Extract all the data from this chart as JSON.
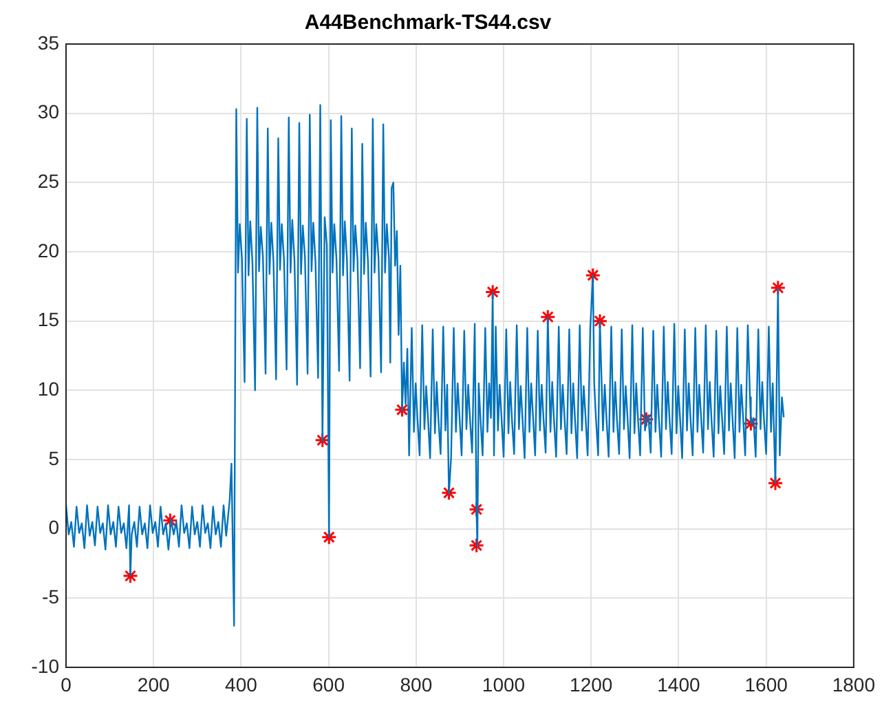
{
  "chart_data": {
    "type": "line",
    "title": "A44Benchmark-TS44.csv",
    "xlim": [
      0,
      1800
    ],
    "xticks": [
      0,
      200,
      400,
      600,
      800,
      1000,
      1200,
      1400,
      1600,
      1800
    ],
    "ylim": [
      -10,
      35
    ],
    "yticks": [
      -10,
      -5,
      0,
      5,
      10,
      15,
      20,
      25,
      30,
      35
    ],
    "grid": true,
    "legend": false,
    "series": [
      {
        "type": "line",
        "color": "#0072bd",
        "marker": "none",
        "line_style": "solid",
        "x": [
          0,
          6,
          12,
          18,
          24,
          30,
          36,
          42,
          48,
          54,
          60,
          66,
          72,
          78,
          84,
          90,
          96,
          102,
          108,
          114,
          120,
          126,
          132,
          138,
          144,
          147,
          150,
          156,
          162,
          168,
          174,
          180,
          186,
          192,
          198,
          204,
          210,
          216,
          222,
          228,
          234,
          240,
          246,
          252,
          258,
          264,
          270,
          276,
          282,
          288,
          294,
          300,
          306,
          312,
          318,
          324,
          330,
          336,
          342,
          348,
          354,
          360,
          366,
          370,
          374,
          378,
          384,
          389,
          393,
          397,
          402,
          408,
          413,
          417,
          421,
          426,
          432,
          437,
          441,
          445,
          450,
          456,
          461,
          465,
          469,
          474,
          480,
          485,
          489,
          493,
          498,
          504,
          509,
          513,
          517,
          522,
          528,
          533,
          537,
          541,
          546,
          552,
          557,
          561,
          565,
          570,
          576,
          581,
          586,
          591,
          596,
          601,
          605,
          609,
          613,
          618,
          624,
          629,
          633,
          637,
          642,
          648,
          653,
          657,
          661,
          666,
          672,
          677,
          681,
          685,
          690,
          696,
          701,
          705,
          709,
          714,
          720,
          725,
          729,
          733,
          738,
          741,
          744,
          748,
          752,
          756,
          760,
          764,
          768,
          772,
          776,
          780,
          784,
          790,
          795,
          799,
          803,
          808,
          814,
          819,
          823,
          827,
          832,
          838,
          843,
          847,
          851,
          856,
          862,
          867,
          871,
          875,
          880,
          886,
          891,
          895,
          899,
          904,
          910,
          915,
          919,
          923,
          928,
          934,
          938,
          940,
          943,
          947,
          952,
          958,
          963,
          967,
          971,
          975,
          978,
          982,
          987,
          991,
          995,
          1000,
          1006,
          1011,
          1015,
          1019,
          1024,
          1030,
          1035,
          1039,
          1043,
          1048,
          1054,
          1059,
          1063,
          1067,
          1072,
          1078,
          1083,
          1087,
          1091,
          1096,
          1101,
          1107,
          1111,
          1115,
          1120,
          1126,
          1131,
          1135,
          1139,
          1144,
          1150,
          1155,
          1159,
          1163,
          1168,
          1174,
          1179,
          1183,
          1187,
          1192,
          1198,
          1204,
          1207,
          1211,
          1216,
          1220,
          1227,
          1231,
          1235,
          1240,
          1246,
          1251,
          1255,
          1259,
          1264,
          1270,
          1275,
          1279,
          1283,
          1288,
          1294,
          1299,
          1303,
          1307,
          1312,
          1318,
          1323,
          1327,
          1331,
          1336,
          1342,
          1347,
          1351,
          1355,
          1360,
          1366,
          1371,
          1375,
          1379,
          1384,
          1390,
          1395,
          1399,
          1403,
          1408,
          1414,
          1419,
          1423,
          1427,
          1432,
          1438,
          1443,
          1447,
          1451,
          1456,
          1462,
          1467,
          1471,
          1475,
          1480,
          1486,
          1491,
          1495,
          1499,
          1504,
          1510,
          1515,
          1519,
          1523,
          1528,
          1534,
          1539,
          1543,
          1547,
          1552,
          1558,
          1563,
          1565,
          1571,
          1576,
          1582,
          1587,
          1591,
          1595,
          1600,
          1606,
          1611,
          1615,
          1621,
          1627,
          1631,
          1636,
          1640
        ],
        "values": [
          1.7,
          -0.4,
          0.5,
          -1.3,
          1.6,
          -0.3,
          0.4,
          -1.4,
          1.7,
          -0.5,
          0.5,
          -1.2,
          1.6,
          -0.3,
          0.4,
          -1.5,
          1.7,
          -0.4,
          0.5,
          -1.3,
          1.6,
          -0.3,
          0.4,
          -1.4,
          1.7,
          -3.4,
          -0.4,
          0.5,
          -1.3,
          1.6,
          -0.4,
          0.4,
          -1.4,
          1.7,
          -0.3,
          0.5,
          -1.3,
          1.6,
          -0.4,
          0.4,
          -1.5,
          0.7,
          -0.4,
          0.5,
          -1.3,
          1.7,
          -0.3,
          0.4,
          -1.4,
          1.6,
          -0.4,
          0.5,
          -1.3,
          1.7,
          -0.3,
          0.4,
          -1.4,
          1.6,
          -0.4,
          0.5,
          -1.3,
          1.7,
          -0.5,
          0.8,
          2.1,
          4.7,
          -7.0,
          30.3,
          18.5,
          22,
          19.5,
          10.6,
          29.6,
          18.3,
          22.2,
          19.2,
          10,
          30.4,
          18.6,
          21.8,
          19.6,
          11.2,
          28.9,
          18.4,
          22.1,
          19.3,
          10.8,
          28.2,
          18.7,
          22,
          19.5,
          11.5,
          29.7,
          18.5,
          22.3,
          19.4,
          10.4,
          29.3,
          18.4,
          21.9,
          19.6,
          11.2,
          29.9,
          18.6,
          22.1,
          19.3,
          10.9,
          30.6,
          6.3,
          22.5,
          20.5,
          -0.6,
          29.5,
          18.5,
          22,
          19.5,
          11.4,
          29.8,
          18.3,
          22.2,
          19.4,
          10.7,
          28.9,
          18.6,
          21.9,
          19.5,
          11.6,
          27.8,
          18.4,
          22.1,
          19.3,
          11,
          29.6,
          18.5,
          22,
          19.6,
          11.3,
          29.2,
          18.5,
          22,
          19.5,
          12,
          24.6,
          25,
          19,
          21.5,
          14,
          19,
          8.5,
          12,
          9,
          13,
          5.3,
          14.5,
          7,
          10.5,
          8,
          5.3,
          14.7,
          7.2,
          10.3,
          8.1,
          5.1,
          14.4,
          6.9,
          10.6,
          7.9,
          5.4,
          14.6,
          7.1,
          10.4,
          2.5,
          5.2,
          14.5,
          7,
          10.5,
          8.2,
          5.3,
          14.3,
          7.2,
          10.4,
          8,
          5.5,
          14.8,
          1.3,
          -1.3,
          10.5,
          8,
          5.3,
          14.5,
          7,
          10.5,
          8,
          17.1,
          5.3,
          14.6,
          7.1,
          10.4,
          8.1,
          5.2,
          14.4,
          6.9,
          10.6,
          7.9,
          5.4,
          14.7,
          7.2,
          10.3,
          8,
          5.1,
          14.5,
          7,
          10.5,
          8.2,
          5.3,
          14.3,
          7.1,
          10.4,
          8,
          5.5,
          15.3,
          7,
          10.6,
          7.9,
          5.2,
          14.6,
          7.2,
          10.4,
          8.1,
          5.4,
          14.4,
          6.9,
          10.5,
          8,
          5.1,
          14.7,
          7.1,
          10.3,
          8.2,
          5.3,
          14.5,
          18.3,
          10.5,
          8,
          5.3,
          15,
          7.1,
          10.4,
          8,
          5.2,
          14.6,
          7,
          10.6,
          7.9,
          5.4,
          14.4,
          7.2,
          10.3,
          8.1,
          5.1,
          14.7,
          6.9,
          10.5,
          8,
          5.3,
          14.5,
          7.1,
          7.9,
          8.2,
          5.5,
          14.3,
          7,
          10.4,
          7.9,
          5.2,
          14.6,
          7.2,
          10.6,
          8,
          5.4,
          14.8,
          6.9,
          10.3,
          8.1,
          5.1,
          14.4,
          7.1,
          10.5,
          8,
          5.3,
          14.5,
          7,
          10.4,
          8.2,
          5.5,
          14.7,
          7.2,
          10.6,
          7.9,
          5.2,
          14.3,
          6.9,
          10.3,
          8.1,
          5.4,
          14.6,
          7.1,
          10.5,
          8,
          5.1,
          14.5,
          7,
          10.4,
          8.2,
          5.3,
          14.7,
          9.5,
          7.6,
          8,
          5.2,
          14.4,
          7.2,
          10.6,
          7.9,
          5.4,
          14.6,
          7,
          10.5,
          3.3,
          17.4,
          5.3,
          9.5,
          8.1
        ]
      },
      {
        "type": "scatter",
        "color": "#ff0000",
        "marker": "cross",
        "x": [
          147,
          238,
          586,
          601,
          768,
          875,
          938,
          938,
          975,
          1101,
          1204,
          1220,
          1326,
          1565,
          1621,
          1627
        ],
        "values": [
          -3.4,
          0.6,
          6.4,
          -0.6,
          8.6,
          2.6,
          1.4,
          -1.2,
          17.1,
          15.3,
          18.3,
          15,
          7.9,
          7.6,
          3.3,
          17.4
        ]
      }
    ]
  }
}
